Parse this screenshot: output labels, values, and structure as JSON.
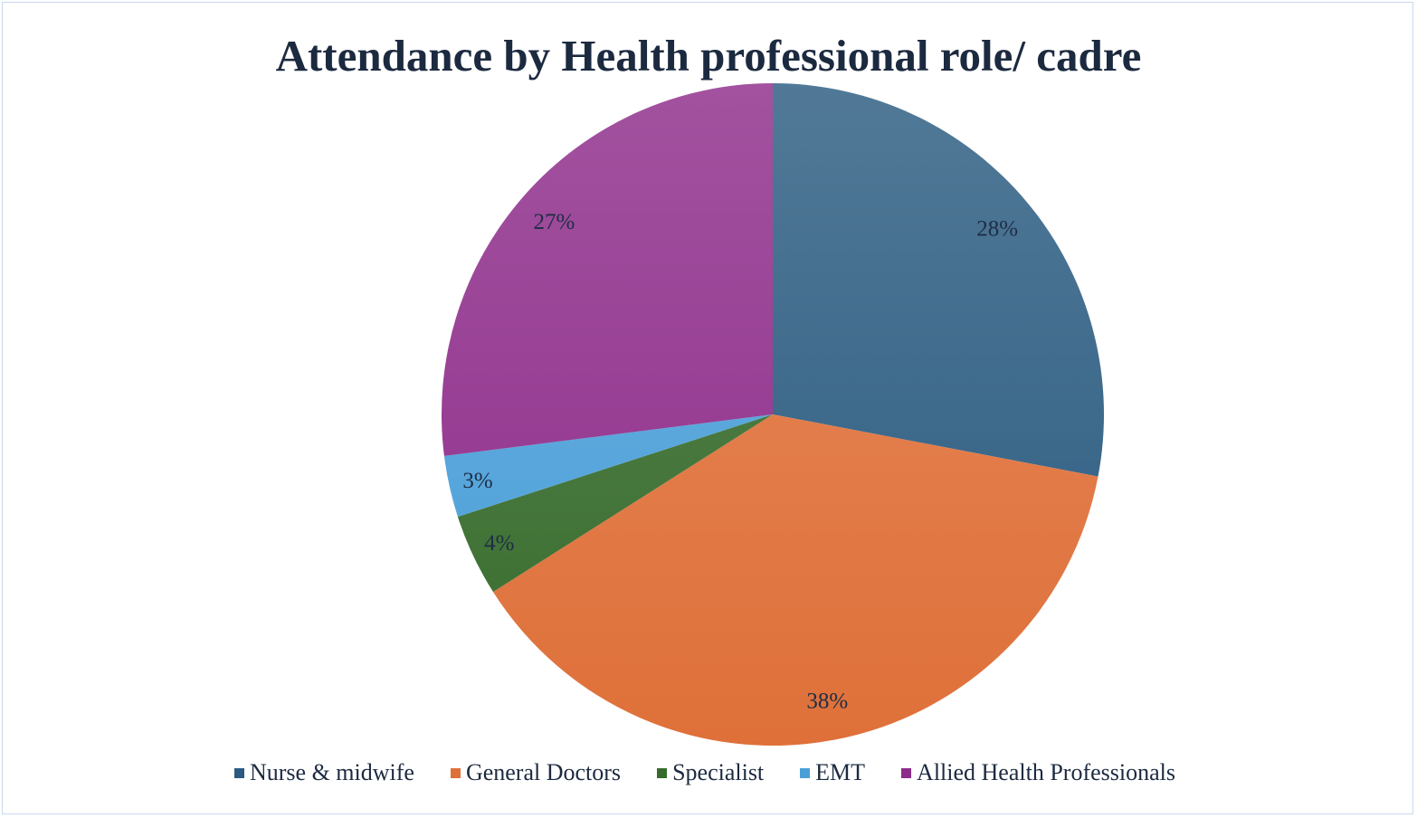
{
  "chart_data": {
    "type": "pie",
    "title": "Attendance by Health professional role/ cadre",
    "categories": [
      "Nurse & midwife",
      "General Doctors",
      "Specialist",
      "EMT",
      "Allied Health Professionals"
    ],
    "values": [
      28,
      38,
      4,
      3,
      27
    ],
    "data_labels": [
      "28%",
      "38%",
      "4%",
      "3%",
      "27%"
    ],
    "colors": [
      "#2b5b80",
      "#df7039",
      "#376b2c",
      "#4a9fd8",
      "#8e2c8a"
    ],
    "start_angle": "top, clockwise",
    "legend_position": "bottom"
  }
}
